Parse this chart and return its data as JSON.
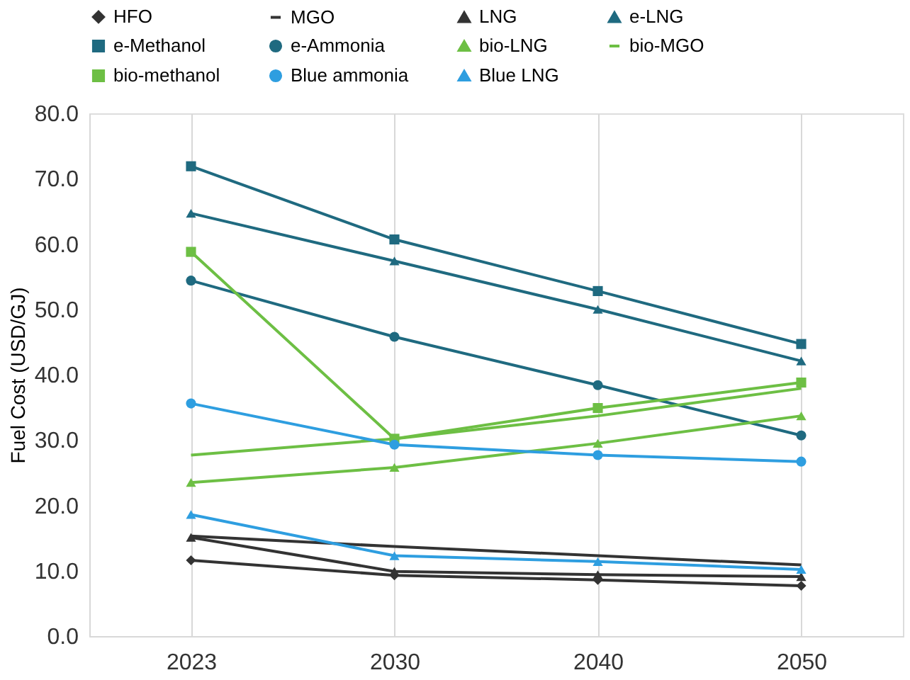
{
  "chart_data": {
    "type": "line",
    "ylabel": "Fuel Cost (USD/GJ)",
    "categories": [
      "2023",
      "2030",
      "2040",
      "2050"
    ],
    "ylim": [
      0,
      80
    ],
    "yticks": [
      {
        "value": 0,
        "label": "0.0"
      },
      {
        "value": 10,
        "label": "10.0"
      },
      {
        "value": 20,
        "label": "20.0"
      },
      {
        "value": 30,
        "label": "30.0"
      },
      {
        "value": 40,
        "label": "40.0"
      },
      {
        "value": 50,
        "label": "50.0"
      },
      {
        "value": 60,
        "label": "60.0"
      },
      {
        "value": 70,
        "label": "70.0"
      },
      {
        "value": 80,
        "label": "80.0"
      }
    ],
    "grid": "x",
    "legend": "top",
    "series": [
      {
        "name": "HFO",
        "color": "#333333",
        "marker": "diamond",
        "values": [
          11.6,
          9.3,
          8.6,
          7.7
        ]
      },
      {
        "name": "MGO",
        "color": "#333333",
        "marker": "none",
        "values": [
          15.3,
          13.7,
          12.3,
          10.9
        ]
      },
      {
        "name": "LNG",
        "color": "#333333",
        "marker": "triangle",
        "values": [
          15.1,
          9.9,
          9.4,
          9.1
        ]
      },
      {
        "name": "e-LNG",
        "color": "#1f6a80",
        "marker": "triangle",
        "values": [
          64.7,
          57.4,
          50.0,
          42.1
        ]
      },
      {
        "name": "e-Methanol",
        "color": "#1f6a80",
        "marker": "square",
        "values": [
          71.9,
          60.7,
          52.8,
          44.7
        ]
      },
      {
        "name": "e-Ammonia",
        "color": "#1f6a80",
        "marker": "circle",
        "values": [
          54.4,
          45.8,
          38.4,
          30.7
        ]
      },
      {
        "name": "bio-LNG",
        "color": "#6dbf44",
        "marker": "triangle",
        "values": [
          23.5,
          25.8,
          29.5,
          33.7
        ]
      },
      {
        "name": "bio-MGO",
        "color": "#6dbf44",
        "marker": "none",
        "values": [
          27.7,
          30.2,
          33.7,
          37.9
        ]
      },
      {
        "name": "bio-methanol",
        "color": "#6dbf44",
        "marker": "square",
        "values": [
          58.8,
          30.2,
          34.9,
          38.8
        ]
      },
      {
        "name": "Blue ammonia",
        "color": "#2e9ee0",
        "marker": "circle",
        "values": [
          35.6,
          29.3,
          27.7,
          26.7
        ]
      },
      {
        "name": "Blue LNG",
        "color": "#2e9ee0",
        "marker": "triangle",
        "values": [
          18.6,
          12.3,
          11.4,
          10.2
        ]
      }
    ]
  }
}
